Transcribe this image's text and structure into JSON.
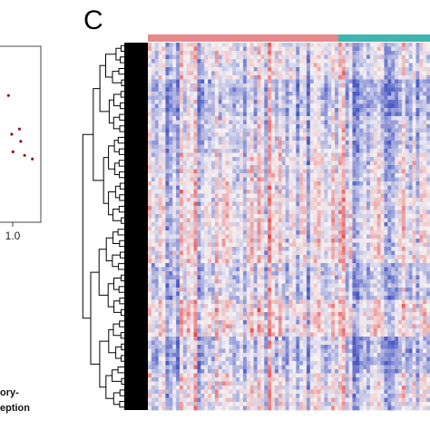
{
  "panels": {
    "left_partial": {
      "x_tick_label": "1.0",
      "caption_lines": [
        "ory-",
        "eption"
      ]
    },
    "c": {
      "letter": "C"
    }
  },
  "chart_data": [
    {
      "type": "scatter",
      "panel": "partial-left",
      "x_tick_labels": [
        "1.0"
      ],
      "points": [
        {
          "x": 0.55,
          "y": 0.72
        },
        {
          "x": 0.72,
          "y": 0.53
        },
        {
          "x": 0.6,
          "y": 0.5
        },
        {
          "x": 0.74,
          "y": 0.46
        },
        {
          "x": 0.8,
          "y": 0.38
        },
        {
          "x": 0.92,
          "y": 0.36
        },
        {
          "x": 0.62,
          "y": 0.4
        }
      ],
      "colors": {
        "point": "#8b1a1a",
        "frame": "#444444"
      }
    },
    {
      "type": "heatmap",
      "panel": "C",
      "rows": 90,
      "columns": 80,
      "group_bar": [
        {
          "columns": 54,
          "color": "#e8898b"
        },
        {
          "columns": 26,
          "color": "#3fb5b0"
        }
      ],
      "color_scale": {
        "low": "#4b5bc4",
        "mid": "#f5f2f4",
        "high": "#e24a4a"
      },
      "dendrogram": "rows",
      "dendrogram_color": "#000000"
    }
  ]
}
